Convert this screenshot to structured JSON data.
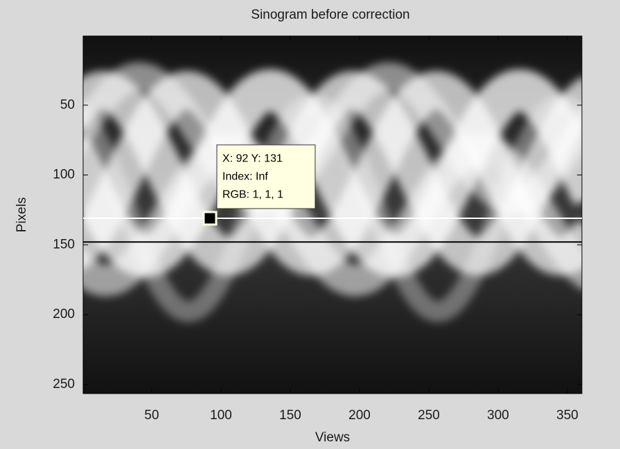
{
  "chart_data": {
    "type": "image",
    "title": "Sinogram before correction",
    "xlabel": "Views",
    "ylabel": "Pixels",
    "xlim": [
      0.5,
      360.5
    ],
    "ylim": [
      0.5,
      256.5
    ],
    "ydir": "reverse",
    "xticks": [
      50,
      100,
      150,
      200,
      250,
      300,
      350
    ],
    "yticks": [
      50,
      100,
      150,
      200,
      250
    ],
    "hlines": [
      {
        "y": 131,
        "color": "#ffffff"
      },
      {
        "y": 148,
        "color": "#000000"
      }
    ],
    "datatip": {
      "x": 92,
      "y": 131,
      "lines": [
        "X: 92 Y: 131",
        "Index: Inf",
        "RGB: 1, 1, 1"
      ]
    }
  }
}
